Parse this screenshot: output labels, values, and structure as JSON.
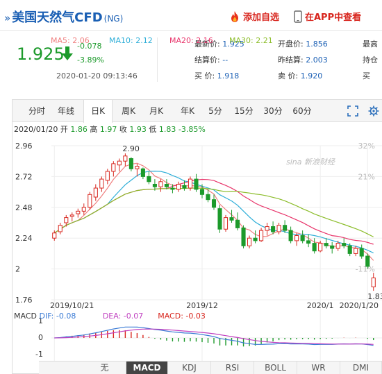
{
  "header": {
    "title_prefix": "»",
    "title": "美国天然气CFD",
    "code": "(NG)",
    "add_label": "添加自选",
    "app_label": "在APP中查看"
  },
  "quote": {
    "price": "1.925",
    "change": "-0.078",
    "change_pct": "-3.89%",
    "datetime": "2020-01-20 09:13:46",
    "fields": {
      "latest_label": "最新价:",
      "latest_value": "1.925",
      "settle_label": "结算价:",
      "settle_value": "--",
      "bid_label": "买  价:",
      "bid_value": "1.918",
      "open_label": "开盘价:",
      "open_value": "1.856",
      "prev_label": "昨结算:",
      "prev_value": "2.003",
      "ask_label": "卖  价:",
      "ask_value": "1.920",
      "high_label": "最高",
      "hold_label": "持仓",
      "buy_label": "买"
    }
  },
  "tabs": [
    "分时",
    "年线",
    "日K",
    "周K",
    "月K",
    "年K",
    "5分",
    "15分",
    "30分",
    "60分"
  ],
  "active_tab": "日K",
  "ohlc": {
    "date": "2020/01/20",
    "open_label": "开",
    "open": "1.86",
    "high_label": "高",
    "high": "1.97",
    "close_label": "收",
    "close": "1.93",
    "low_label": "低",
    "low": "1.83",
    "pct": "-3.85%"
  },
  "ma": [
    {
      "text": "MA5: 2.06",
      "color": "#f08080"
    },
    {
      "text": "MA10: 2.12",
      "color": "#2eaed8"
    },
    {
      "text": "MA20: 2.16",
      "color": "#e8356b"
    },
    {
      "text": "MA30: 2.21",
      "color": "#8cbd2b"
    }
  ],
  "watermark": "sina 新浪财经",
  "macd_legend": {
    "title": "MACD",
    "dif": "DIF: -0.08",
    "dif_color": "#3a7bd5",
    "dea": "DEA: -0.07",
    "dea_color": "#c040c0",
    "macd": "MACD: -0.03",
    "macd_color": "#d8261e"
  },
  "indicators": [
    "无",
    "MACD",
    "KDJ",
    "RSI",
    "BOLL",
    "WR",
    "DMI"
  ],
  "active_indicator": "MACD",
  "colors": {
    "up": "#d8261e",
    "down": "#1c9a2b",
    "link": "#1a5fb4"
  },
  "chart_data": {
    "type": "candlestick",
    "y_ticks": [
      "2.96",
      "2.72",
      "2.48",
      "2.24",
      "2",
      "1.76"
    ],
    "y_ticks_right": [
      "32%",
      "21%",
      "",
      "",
      "-11%",
      ""
    ],
    "ylim": [
      1.76,
      2.96
    ],
    "x_ticks": [
      "2019/10/21",
      "2019/12",
      "2020/1",
      "2020/1/20"
    ],
    "annotations": {
      "max": "2.90",
      "min": "1.83"
    },
    "macd_ticks": [
      "1",
      "0",
      "-1"
    ],
    "candles": [
      [
        2.24,
        2.3,
        2.22,
        2.28
      ],
      [
        2.29,
        2.36,
        2.27,
        2.34
      ],
      [
        2.36,
        2.42,
        2.33,
        2.4
      ],
      [
        2.41,
        2.44,
        2.37,
        2.42
      ],
      [
        2.43,
        2.47,
        2.4,
        2.45
      ],
      [
        2.45,
        2.51,
        2.42,
        2.48
      ],
      [
        2.48,
        2.6,
        2.46,
        2.58
      ],
      [
        2.56,
        2.66,
        2.53,
        2.63
      ],
      [
        2.63,
        2.72,
        2.6,
        2.7
      ],
      [
        2.69,
        2.78,
        2.66,
        2.76
      ],
      [
        2.76,
        2.84,
        2.72,
        2.82
      ],
      [
        2.81,
        2.86,
        2.76,
        2.84
      ],
      [
        2.84,
        2.9,
        2.8,
        2.88
      ],
      [
        2.86,
        2.87,
        2.76,
        2.78
      ],
      [
        2.78,
        2.82,
        2.72,
        2.8
      ],
      [
        2.78,
        2.79,
        2.7,
        2.72
      ],
      [
        2.72,
        2.76,
        2.66,
        2.68
      ],
      [
        2.66,
        2.7,
        2.61,
        2.64
      ],
      [
        2.64,
        2.7,
        2.6,
        2.68
      ],
      [
        2.66,
        2.7,
        2.62,
        2.64
      ],
      [
        2.63,
        2.66,
        2.59,
        2.62
      ],
      [
        2.62,
        2.68,
        2.6,
        2.66
      ],
      [
        2.65,
        2.69,
        2.61,
        2.63
      ],
      [
        2.63,
        2.72,
        2.61,
        2.7
      ],
      [
        2.7,
        2.74,
        2.6,
        2.62
      ],
      [
        2.62,
        2.66,
        2.55,
        2.58
      ],
      [
        2.58,
        2.62,
        2.52,
        2.54
      ],
      [
        2.54,
        2.58,
        2.46,
        2.48
      ],
      [
        2.47,
        2.5,
        2.28,
        2.31
      ],
      [
        2.31,
        2.42,
        2.29,
        2.4
      ],
      [
        2.4,
        2.46,
        2.36,
        2.38
      ],
      [
        2.38,
        2.44,
        2.3,
        2.32
      ],
      [
        2.32,
        2.34,
        2.16,
        2.18
      ],
      [
        2.18,
        2.26,
        2.16,
        2.24
      ],
      [
        2.24,
        2.3,
        2.2,
        2.22
      ],
      [
        2.22,
        2.32,
        2.21,
        2.3
      ],
      [
        2.3,
        2.36,
        2.26,
        2.33
      ],
      [
        2.33,
        2.37,
        2.27,
        2.29
      ],
      [
        2.29,
        2.36,
        2.27,
        2.34
      ],
      [
        2.34,
        2.38,
        2.28,
        2.3
      ],
      [
        2.3,
        2.33,
        2.2,
        2.22
      ],
      [
        2.22,
        2.28,
        2.18,
        2.26
      ],
      [
        2.26,
        2.3,
        2.2,
        2.22
      ],
      [
        2.22,
        2.27,
        2.17,
        2.2
      ],
      [
        2.2,
        2.24,
        2.12,
        2.14
      ],
      [
        2.14,
        2.22,
        2.13,
        2.2
      ],
      [
        2.2,
        2.24,
        2.16,
        2.18
      ],
      [
        2.18,
        2.21,
        2.12,
        2.16
      ],
      [
        2.16,
        2.22,
        2.14,
        2.2
      ],
      [
        2.2,
        2.24,
        2.16,
        2.18
      ],
      [
        2.18,
        2.2,
        2.1,
        2.12
      ],
      [
        2.12,
        2.18,
        2.1,
        2.16
      ],
      [
        2.16,
        2.19,
        2.08,
        2.1
      ],
      [
        2.1,
        2.12,
        2.0,
        2.02
      ],
      [
        1.86,
        1.97,
        1.83,
        1.93
      ]
    ]
  }
}
